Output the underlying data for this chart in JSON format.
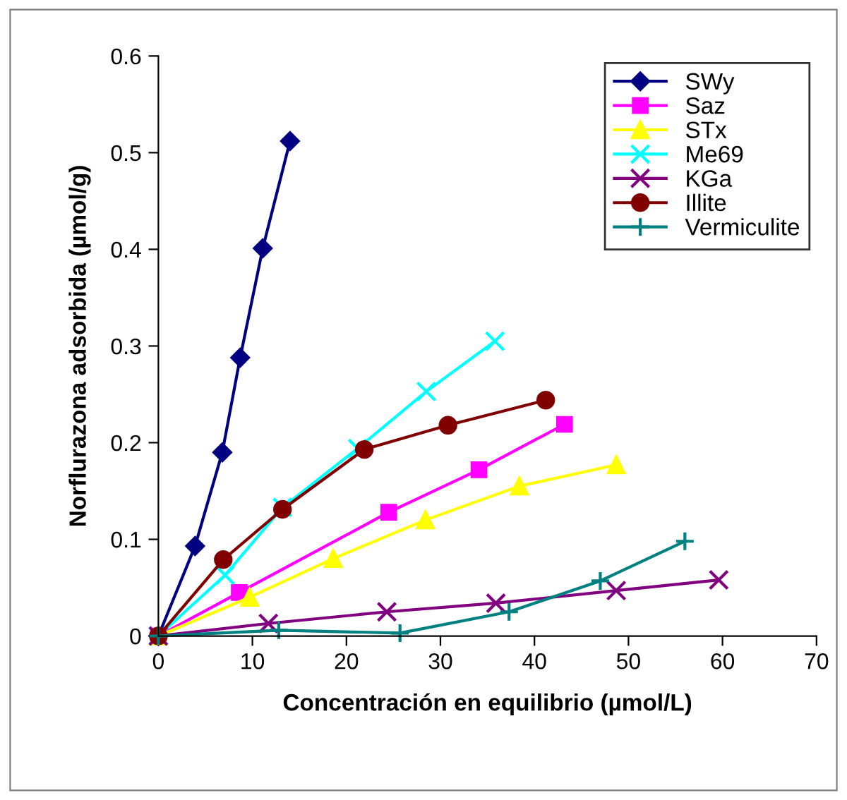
{
  "chart_data": {
    "type": "line",
    "xlabel": "Concentración en equilibrio (µmol/L)",
    "ylabel": "Norflurazona adsorbida (µmol/g)",
    "xlim": [
      0,
      70
    ],
    "xticks": [
      0,
      10,
      20,
      30,
      40,
      50,
      60,
      70
    ],
    "ylim": [
      0,
      0.6
    ],
    "yticks": [
      0,
      0.1,
      0.2,
      0.3,
      0.4,
      0.5,
      0.6
    ],
    "grid": false,
    "legend": "top right",
    "series": [
      {
        "name": "SWy",
        "color": "#000080",
        "marker": "diamond",
        "x": [
          0,
          3.9,
          6.8,
          8.7,
          11.1,
          14.0
        ],
        "values": [
          0,
          0.093,
          0.19,
          0.288,
          0.401,
          0.512
        ]
      },
      {
        "name": "Saz",
        "color": "#ff00ff",
        "marker": "square",
        "x": [
          0,
          8.6,
          24.5,
          34.1,
          43.2
        ],
        "values": [
          0,
          0.045,
          0.128,
          0.172,
          0.219
        ]
      },
      {
        "name": "STx",
        "color": "#ffff00",
        "marker": "triangle",
        "x": [
          0,
          9.7,
          18.6,
          28.4,
          38.4,
          48.7
        ],
        "values": [
          0,
          0.04,
          0.08,
          0.12,
          0.155,
          0.177
        ]
      },
      {
        "name": "Me69",
        "color": "#00ffff",
        "marker": "cross",
        "x": [
          0,
          7.1,
          13.2,
          21.2,
          28.5,
          35.8
        ],
        "values": [
          0,
          0.063,
          0.133,
          0.194,
          0.253,
          0.305
        ]
      },
      {
        "name": "KGa",
        "color": "#800080",
        "marker": "cross",
        "x": [
          0,
          11.7,
          24.3,
          35.9,
          48.7,
          59.6
        ],
        "values": [
          0,
          0.013,
          0.025,
          0.034,
          0.047,
          0.058
        ]
      },
      {
        "name": "Illite",
        "color": "#800000",
        "marker": "circle",
        "x": [
          0,
          6.9,
          13.2,
          21.9,
          30.8,
          41.2
        ],
        "values": [
          0,
          0.079,
          0.131,
          0.193,
          0.218,
          0.244
        ]
      },
      {
        "name": "Vermiculite",
        "color": "#008080",
        "marker": "plus",
        "x": [
          0,
          12.8,
          25.7,
          37.3,
          47.0,
          56.0
        ],
        "values": [
          0,
          0.006,
          0.003,
          0.025,
          0.057,
          0.098
        ]
      }
    ]
  }
}
